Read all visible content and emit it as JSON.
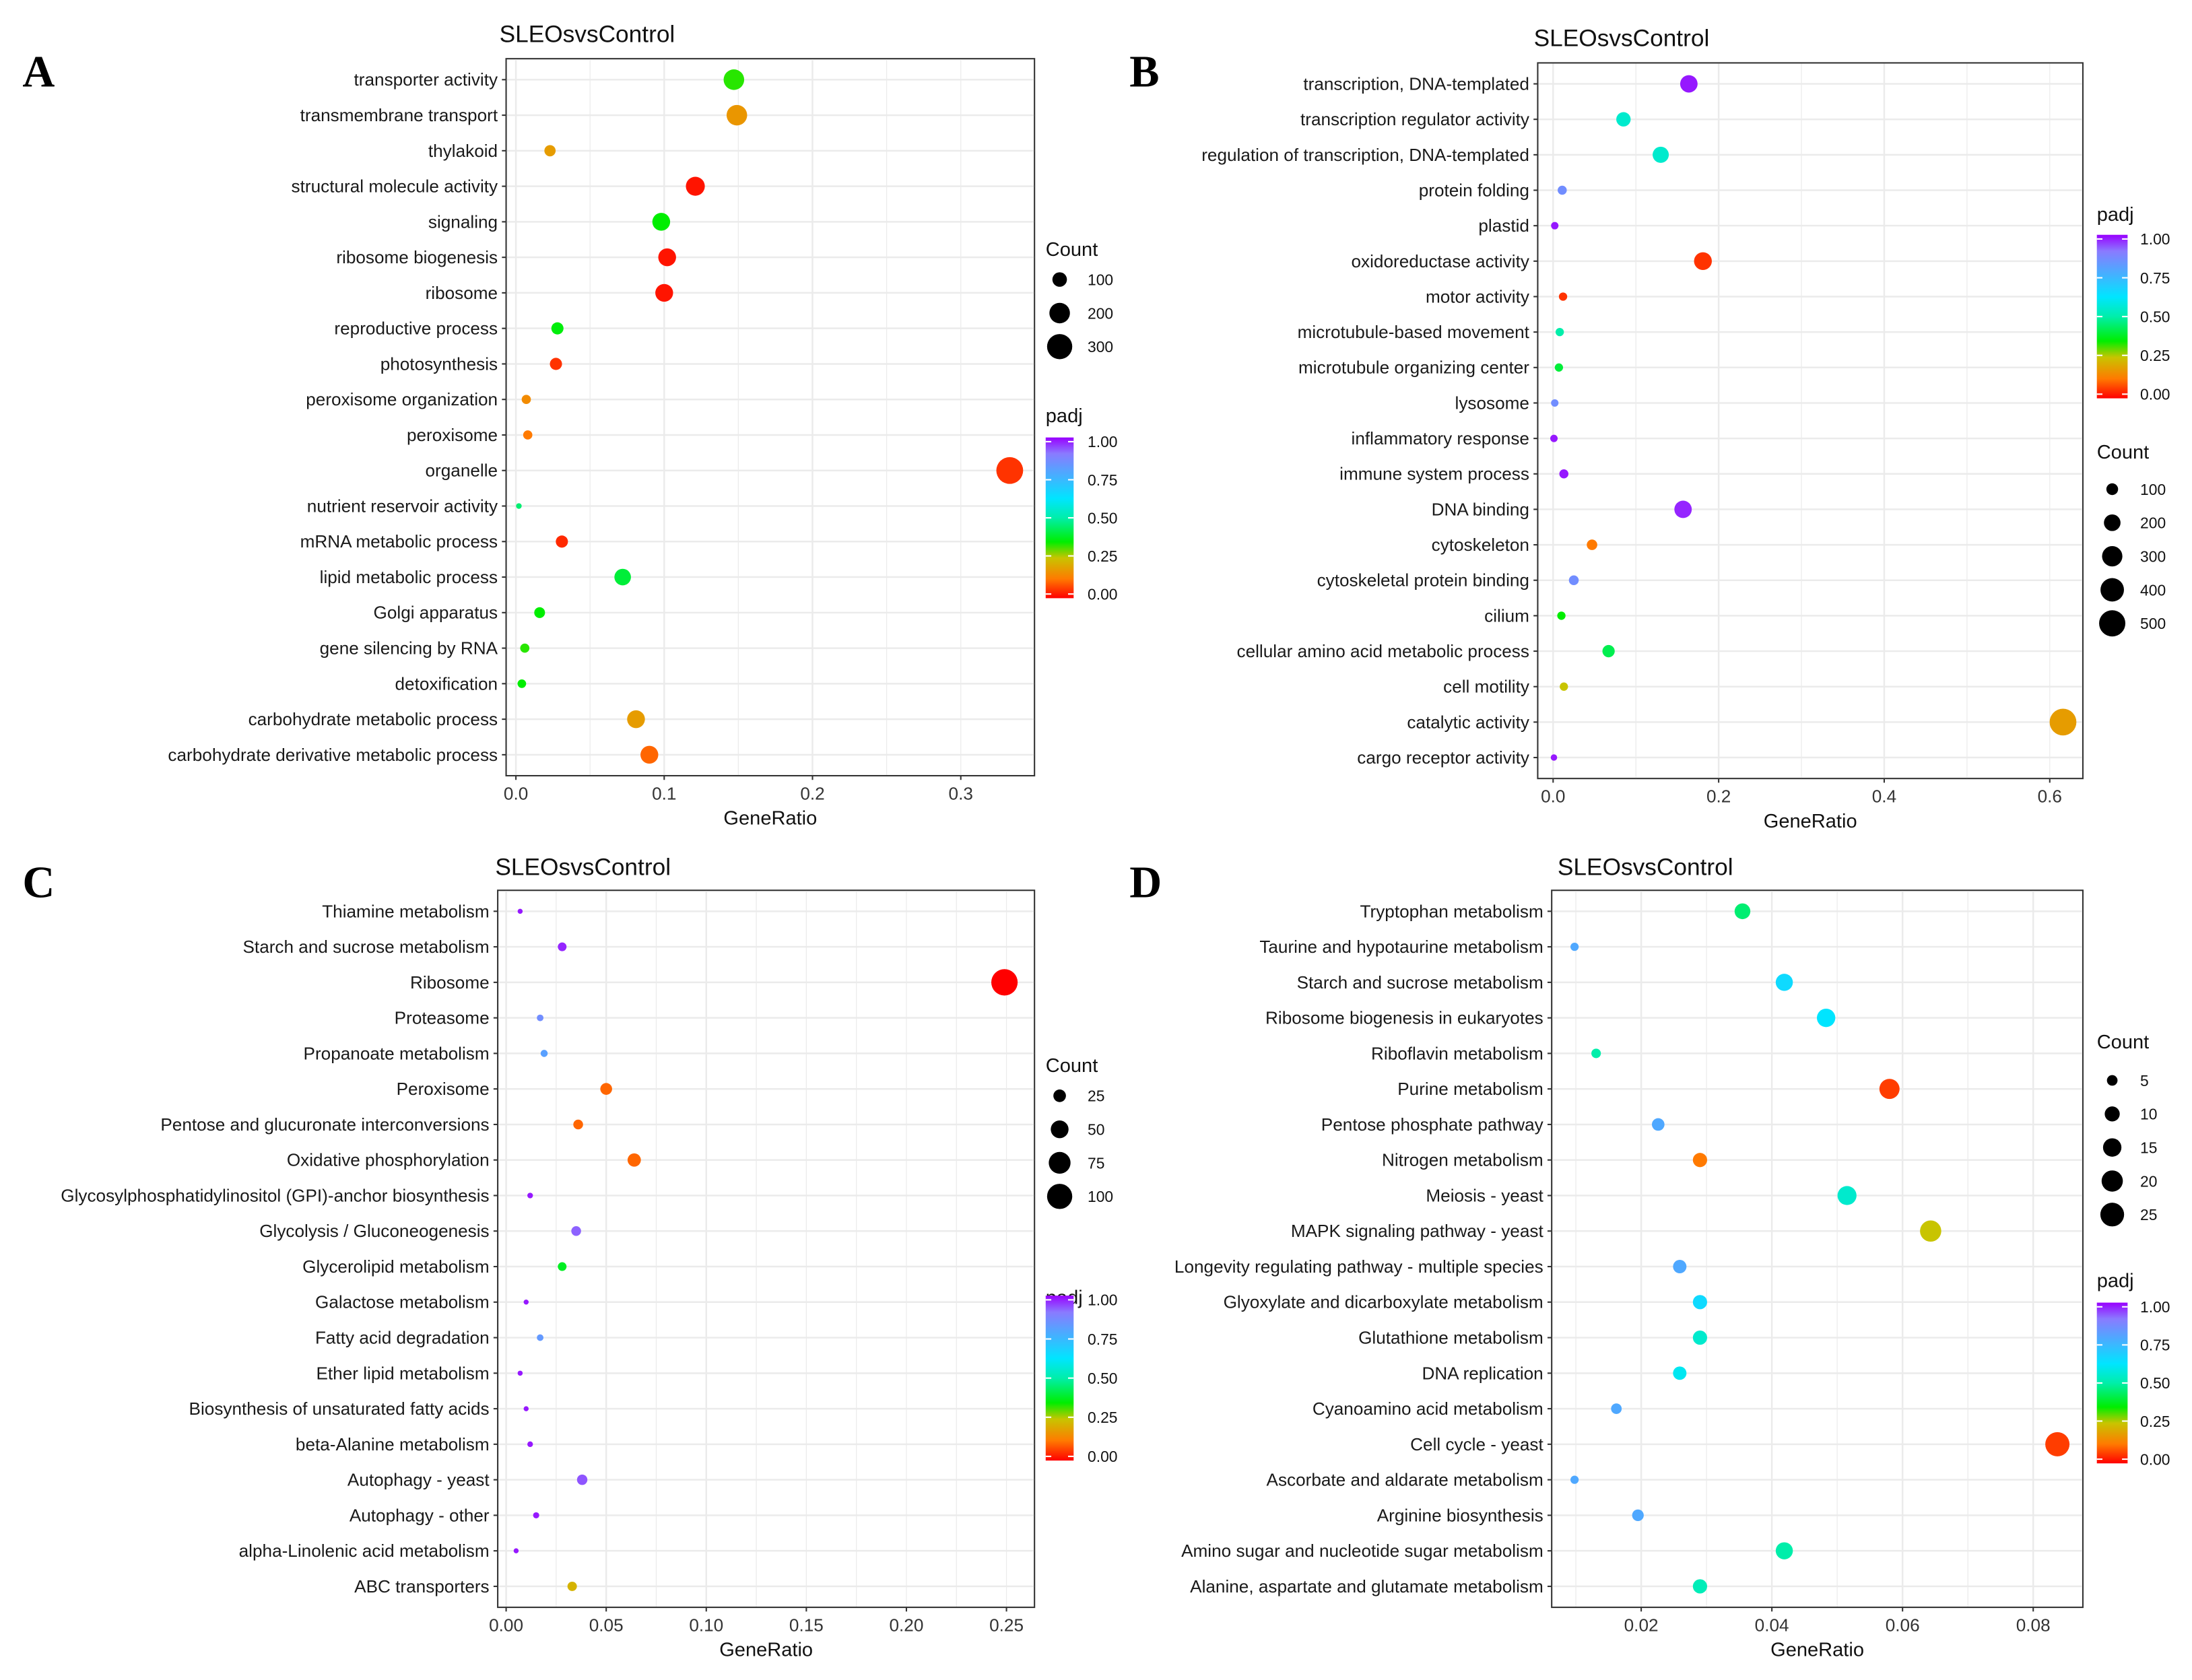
{
  "colors": {
    "padj_stops": [
      [
        0,
        "#ff0000"
      ],
      [
        0.12,
        "#ff7a00"
      ],
      [
        0.25,
        "#c8c400"
      ],
      [
        0.35,
        "#00ee00"
      ],
      [
        0.5,
        "#00eeaa"
      ],
      [
        0.62,
        "#00e5ff"
      ],
      [
        0.78,
        "#4fa8ff"
      ],
      [
        0.9,
        "#8a7aff"
      ],
      [
        1,
        "#9900ff"
      ]
    ]
  },
  "chart_data": [
    {
      "type": "scatter",
      "panel": "A",
      "title": "SLEOsvsControl",
      "xlabel": "GeneRatio",
      "ylabel": "",
      "xlim": [
        -0.0066,
        0.3497
      ],
      "xticks": [
        {
          "v": 0,
          "label": "0.0"
        },
        {
          "v": 0.1,
          "label": "0.1"
        },
        {
          "v": 0.2,
          "label": "0.2"
        },
        {
          "v": 0.3,
          "label": "0.3"
        }
      ],
      "legend_order": [
        "count",
        "padj"
      ],
      "count_legend": {
        "title": "Count",
        "values": [
          100,
          200,
          300
        ],
        "labels": [
          "100",
          "200",
          "300"
        ]
      },
      "padj_legend": {
        "title": "padj",
        "labels": [
          "1.00",
          "0.75",
          "0.50",
          "0.25",
          "0.00"
        ]
      },
      "terms": [
        "transporter activity",
        "transmembrane transport",
        "thylakoid",
        "structural molecule activity",
        "signaling",
        "ribosome biogenesis",
        "ribosome",
        "reproductive process",
        "photosynthesis",
        "peroxisome organization",
        "peroxisome",
        "organelle",
        "nutrient reservoir activity",
        "mRNA metabolic process",
        "lipid metabolic process",
        "Golgi apparatus",
        "gene silencing by RNA",
        "detoxification",
        "carbohydrate metabolic process",
        "carbohydrate derivative metabolic process"
      ],
      "gene_ratio": [
        0.147,
        0.149,
        0.023,
        0.121,
        0.098,
        0.102,
        0.1,
        0.028,
        0.027,
        0.007,
        0.008,
        0.333,
        0.002,
        0.031,
        0.072,
        0.016,
        0.006,
        0.004,
        0.081,
        0.09
      ],
      "count": [
        200,
        200,
        60,
        170,
        150,
        150,
        150,
        70,
        70,
        40,
        40,
        340,
        15,
        70,
        130,
        55,
        40,
        35,
        150,
        150
      ],
      "padj": [
        0.33,
        0.17,
        0.18,
        0.02,
        0.35,
        0.02,
        0.02,
        0.36,
        0.05,
        0.15,
        0.12,
        0.05,
        0.45,
        0.04,
        0.4,
        0.35,
        0.33,
        0.35,
        0.18,
        0.1
      ]
    },
    {
      "type": "scatter",
      "panel": "B",
      "title": "SLEOsvsControl",
      "xlabel": "GeneRatio",
      "ylabel": "",
      "xlim": [
        -0.0186,
        0.64
      ],
      "xticks": [
        {
          "v": 0,
          "label": "0.0"
        },
        {
          "v": 0.2,
          "label": "0.2"
        },
        {
          "v": 0.4,
          "label": "0.4"
        },
        {
          "v": 0.6,
          "label": "0.6"
        }
      ],
      "legend_order": [
        "padj",
        "count"
      ],
      "count_legend": {
        "title": "Count",
        "values": [
          100,
          200,
          300,
          400,
          500
        ],
        "labels": [
          "100",
          "200",
          "300",
          "400",
          "500"
        ]
      },
      "padj_legend": {
        "title": "padj",
        "labels": [
          "1.00",
          "0.75",
          "0.50",
          "0.25",
          "0.00"
        ]
      },
      "terms": [
        "transcription, DNA-templated",
        "transcription regulator activity",
        "regulation of transcription, DNA-templated",
        "protein folding",
        "plastid",
        "oxidoreductase activity",
        "motor activity",
        "microtubule-based movement",
        "microtubule organizing center",
        "lysosome",
        "inflammatory response",
        "immune system process",
        "DNA binding",
        "cytoskeleton",
        "cytoskeletal protein binding",
        "cilium",
        "cellular amino acid metabolic process",
        "cell motility",
        "catalytic activity",
        "cargo receptor activity"
      ],
      "gene_ratio": [
        0.164,
        0.085,
        0.13,
        0.011,
        0.002,
        0.181,
        0.012,
        0.008,
        0.007,
        0.002,
        0.001,
        0.013,
        0.157,
        0.047,
        0.025,
        0.01,
        0.067,
        0.013,
        0.616,
        0.001
      ],
      "count": [
        220,
        150,
        190,
        60,
        40,
        230,
        50,
        50,
        50,
        40,
        40,
        60,
        220,
        80,
        70,
        50,
        110,
        50,
        520,
        30
      ],
      "padj": [
        0.98,
        0.55,
        0.55,
        0.85,
        0.98,
        0.05,
        0.05,
        0.5,
        0.4,
        0.85,
        0.98,
        0.98,
        0.97,
        0.12,
        0.85,
        0.35,
        0.42,
        0.25,
        0.18,
        0.98
      ]
    },
    {
      "type": "scatter",
      "panel": "C",
      "title": "SLEOsvsControl",
      "xlabel": "GeneRatio",
      "ylabel": "",
      "xlim": [
        -0.0042,
        0.264
      ],
      "xticks": [
        {
          "v": 0,
          "label": "0.00"
        },
        {
          "v": 0.05,
          "label": "0.05"
        },
        {
          "v": 0.1,
          "label": "0.10"
        },
        {
          "v": 0.15,
          "label": "0.15"
        },
        {
          "v": 0.2,
          "label": "0.20"
        },
        {
          "v": 0.25,
          "label": "0.25"
        }
      ],
      "legend_order": [
        "count",
        "padj"
      ],
      "count_legend": {
        "title": "Count",
        "values": [
          25,
          50,
          75,
          100
        ],
        "labels": [
          "25",
          "50",
          "75",
          "100"
        ]
      },
      "padj_legend": {
        "title": "padj",
        "labels": [
          "1.00",
          "0.75",
          "0.50",
          "0.25",
          "0.00"
        ]
      },
      "terms": [
        "Thiamine metabolism",
        "Starch and sucrose metabolism",
        "Ribosome",
        "Proteasome",
        "Propanoate metabolism",
        "Peroxisome",
        "Pentose and glucuronate interconversions",
        "Oxidative phosphorylation",
        "Glycosylphosphatidylinositol (GPI)-anchor biosynthesis",
        "Glycolysis / Gluconeogenesis",
        "Glycerolipid metabolism",
        "Galactose metabolism",
        "Fatty acid degradation",
        "Ether lipid metabolism",
        "Biosynthesis of unsaturated fatty acids",
        "beta-Alanine metabolism",
        "Autophagy - yeast",
        "Autophagy - other",
        "alpha-Linolenic acid metabolism",
        "ABC transporters"
      ],
      "gene_ratio": [
        0.007,
        0.028,
        0.249,
        0.017,
        0.019,
        0.05,
        0.036,
        0.064,
        0.012,
        0.035,
        0.028,
        0.01,
        0.017,
        0.007,
        0.01,
        0.012,
        0.038,
        0.015,
        0.005,
        0.033
      ],
      "count": [
        3,
        12,
        110,
        7,
        8,
        22,
        15,
        28,
        5,
        15,
        12,
        4,
        7,
        3,
        4,
        5,
        17,
        6,
        2,
        14
      ],
      "padj": [
        0.98,
        0.97,
        0.0,
        0.85,
        0.8,
        0.1,
        0.1,
        0.1,
        0.98,
        0.92,
        0.38,
        0.98,
        0.82,
        0.98,
        0.98,
        0.98,
        0.93,
        0.98,
        0.98,
        0.22
      ]
    },
    {
      "type": "scatter",
      "panel": "D",
      "title": "SLEOsvsControl",
      "xlabel": "GeneRatio",
      "ylabel": "",
      "xlim": [
        0.0063,
        0.0876
      ],
      "xticks": [
        {
          "v": 0.02,
          "label": "0.02"
        },
        {
          "v": 0.04,
          "label": "0.04"
        },
        {
          "v": 0.06,
          "label": "0.06"
        },
        {
          "v": 0.08,
          "label": "0.08"
        }
      ],
      "legend_order": [
        "count",
        "padj"
      ],
      "count_legend": {
        "title": "Count",
        "values": [
          5,
          10,
          15,
          20,
          25
        ],
        "labels": [
          "5",
          "10",
          "15",
          "20",
          "25"
        ]
      },
      "padj_legend": {
        "title": "padj",
        "labels": [
          "1.00",
          "0.75",
          "0.50",
          "0.25",
          "0.00"
        ]
      },
      "terms": [
        "Tryptophan metabolism",
        "Taurine and hypotaurine metabolism",
        "Starch and sucrose metabolism",
        "Ribosome biogenesis in eukaryotes",
        "Riboflavin metabolism",
        "Purine metabolism",
        "Pentose phosphate pathway",
        "Nitrogen metabolism",
        "Meiosis - yeast",
        "MAPK signaling pathway - yeast",
        "Longevity regulating pathway - multiple species",
        "Glyoxylate and dicarboxylate metabolism",
        "Glutathione metabolism",
        "DNA replication",
        "Cyanoamino acid metabolism",
        "Cell cycle - yeast",
        "Ascorbate and aldarate metabolism",
        "Arginine biosynthesis",
        "Amino sugar and nucleotide sugar metabolism",
        "Alanine, aspartate and glutamate metabolism"
      ],
      "gene_ratio": [
        0.0355,
        0.0098,
        0.0419,
        0.0483,
        0.0131,
        0.058,
        0.0226,
        0.029,
        0.0515,
        0.0643,
        0.0259,
        0.029,
        0.029,
        0.0259,
        0.0162,
        0.0837,
        0.0098,
        0.0195,
        0.0419,
        0.029
      ],
      "count": [
        11,
        3,
        13,
        15,
        4,
        18,
        7,
        9,
        16,
        20,
        8,
        9,
        9,
        8,
        5,
        26,
        3,
        6,
        13,
        9
      ],
      "padj": [
        0.45,
        0.78,
        0.65,
        0.62,
        0.5,
        0.06,
        0.78,
        0.12,
        0.55,
        0.25,
        0.78,
        0.65,
        0.55,
        0.6,
        0.78,
        0.06,
        0.78,
        0.78,
        0.5,
        0.52
      ]
    }
  ]
}
